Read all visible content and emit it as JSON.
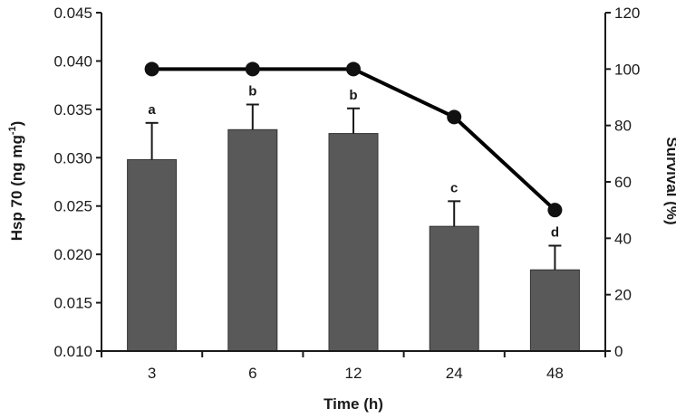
{
  "chart_data": {
    "type": "bar",
    "categories": [
      "3",
      "6",
      "12",
      "24",
      "48"
    ],
    "xlabel": "Time (h)",
    "series": [
      {
        "axis": "left",
        "type": "bar",
        "values": [
          0.0298,
          0.0329,
          0.0325,
          0.0229,
          0.0184
        ],
        "errors": [
          0.0038,
          0.0026,
          0.0026,
          0.0026,
          0.0025
        ],
        "significance_labels": [
          "a",
          "b",
          "b",
          "c",
          "d"
        ],
        "color": "#595959"
      },
      {
        "axis": "right",
        "type": "line",
        "values": [
          100,
          100,
          100,
          83,
          50
        ],
        "color": "#000000"
      }
    ],
    "y_left": {
      "label_main": "Hsp 70 (ng mg",
      "label_sup": "-1",
      "label_close": ")",
      "ylim": [
        0.01,
        0.045
      ],
      "ticks": [
        "0.010",
        "0.015",
        "0.020",
        "0.025",
        "0.030",
        "0.035",
        "0.040",
        "0.045"
      ]
    },
    "y_right": {
      "label": "Survival (%)",
      "ylim": [
        0,
        120
      ],
      "ticks": [
        "0",
        "20",
        "40",
        "60",
        "80",
        "100",
        "120"
      ]
    },
    "grid": false,
    "legend": "none"
  }
}
